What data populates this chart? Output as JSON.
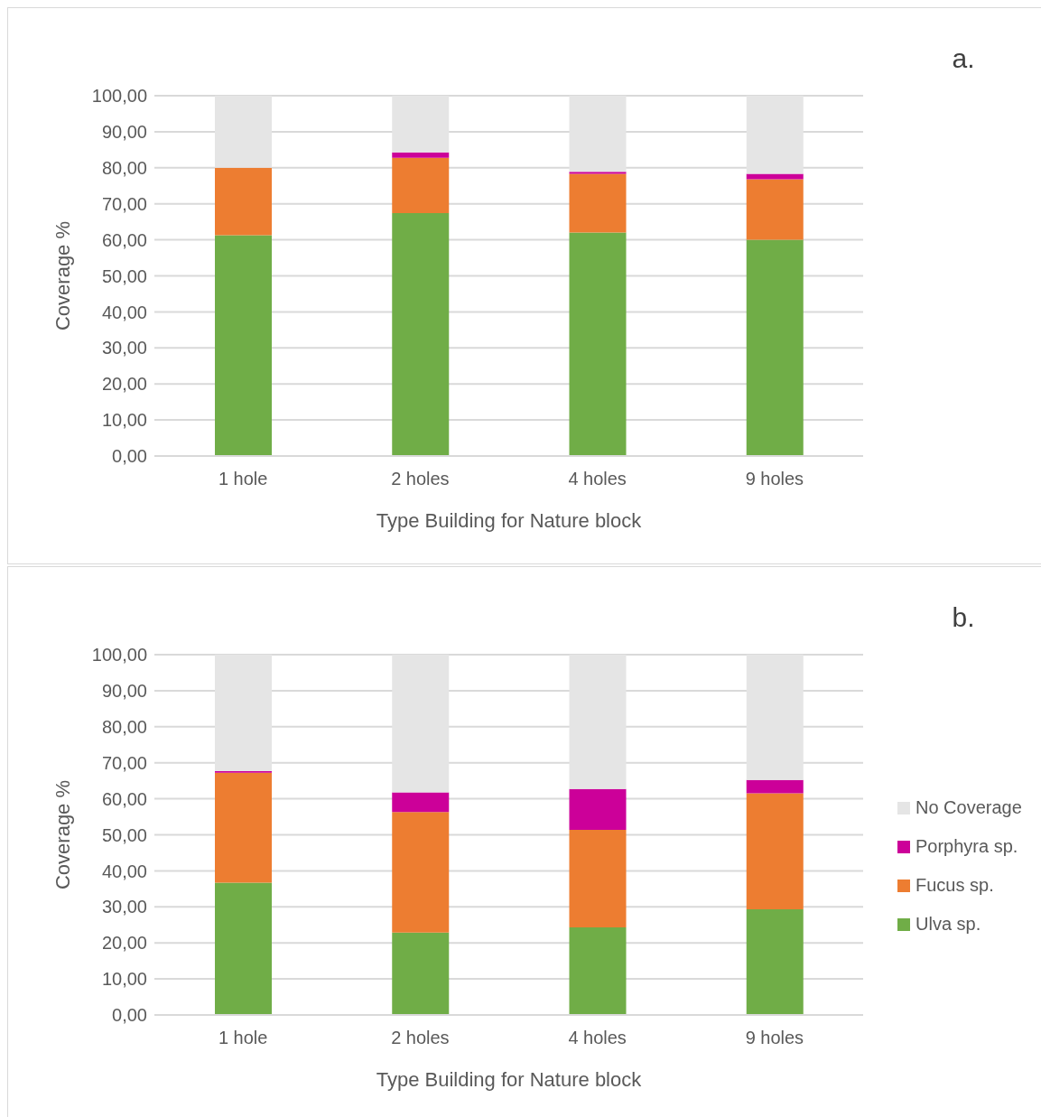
{
  "chart_data": [
    {
      "type": "bar",
      "annotations": [
        "a."
      ],
      "xlabel": "Type Building for Nature block",
      "ylabel": "Coverage %",
      "stacked": true,
      "grid": "y",
      "legend": false,
      "categories": [
        "1 hole",
        "2 holes",
        "4 holes",
        "9 holes"
      ],
      "ylim": [
        0,
        100
      ],
      "yticks": [
        {
          "value": 0,
          "label": "0,00"
        },
        {
          "value": 10,
          "label": "10,00"
        },
        {
          "value": 20,
          "label": "20,00"
        },
        {
          "value": 30,
          "label": "30,00"
        },
        {
          "value": 40,
          "label": "40,00"
        },
        {
          "value": 50,
          "label": "50,00"
        },
        {
          "value": 60,
          "label": "60,00"
        },
        {
          "value": 70,
          "label": "70,00"
        },
        {
          "value": 80,
          "label": "80,00"
        },
        {
          "value": 90,
          "label": "90,00"
        },
        {
          "value": 100,
          "label": "100,00"
        }
      ],
      "series": [
        {
          "color": "#70ad47",
          "values": [
            61.3,
            67.4,
            62.0,
            60.0
          ]
        },
        {
          "color": "#ed7d31",
          "values": [
            18.7,
            15.4,
            16.3,
            16.8
          ]
        },
        {
          "color": "#cc0099",
          "values": [
            0,
            1.5,
            0.6,
            1.5
          ]
        },
        {
          "color": "#e5e5e5",
          "values": [
            20.0,
            15.7,
            21.1,
            21.7
          ]
        }
      ]
    },
    {
      "type": "bar",
      "annotations": [
        "b."
      ],
      "xlabel": "Type Building for Nature block",
      "ylabel": "Coverage %",
      "stacked": true,
      "grid": "y",
      "legend": "right",
      "categories": [
        "1 hole",
        "2 holes",
        "4 holes",
        "9 holes"
      ],
      "ylim": [
        0,
        100
      ],
      "yticks": [
        {
          "value": 0,
          "label": "0,00"
        },
        {
          "value": 10,
          "label": "10,00"
        },
        {
          "value": 20,
          "label": "20,00"
        },
        {
          "value": 30,
          "label": "30,00"
        },
        {
          "value": 40,
          "label": "40,00"
        },
        {
          "value": 50,
          "label": "50,00"
        },
        {
          "value": 60,
          "label": "60,00"
        },
        {
          "value": 70,
          "label": "70,00"
        },
        {
          "value": 80,
          "label": "80,00"
        },
        {
          "value": 90,
          "label": "90,00"
        },
        {
          "value": 100,
          "label": "100,00"
        }
      ],
      "series": [
        {
          "name": "Ulva sp.",
          "color": "#70ad47",
          "values": [
            36.7,
            22.9,
            24.3,
            29.3
          ]
        },
        {
          "name": "Fucus sp.",
          "color": "#ed7d31",
          "values": [
            30.5,
            33.4,
            27.1,
            32.2
          ]
        },
        {
          "name": "Porphyra sp.",
          "color": "#cc0099",
          "values": [
            0.5,
            5.5,
            11.3,
            3.7
          ]
        },
        {
          "name": "No Coverage",
          "color": "#e5e5e5",
          "values": [
            32.3,
            38.2,
            37.3,
            34.8
          ]
        }
      ]
    }
  ]
}
